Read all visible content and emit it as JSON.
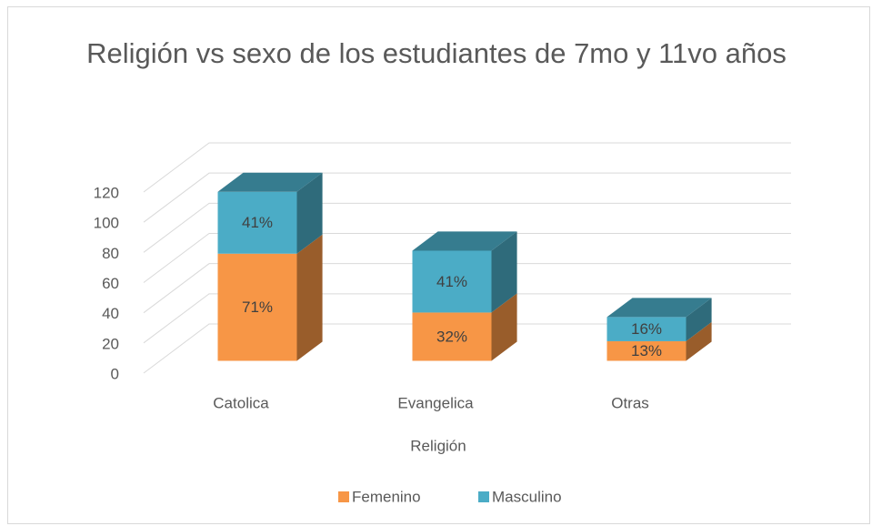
{
  "chart_data": {
    "type": "bar3d_stacked",
    "title": "Religión vs sexo de los estudiantes de 7mo y 11vo años",
    "x_label": "Religión",
    "categories": [
      "Catolica",
      "Evangelica",
      "Otras"
    ],
    "series": [
      {
        "name": "Femenino",
        "color": "#F79646",
        "values": [
          71,
          32,
          13
        ],
        "value_labels": [
          "71%",
          "32%",
          "13%"
        ]
      },
      {
        "name": "Masculino",
        "color": "#4BACC6",
        "values": [
          41,
          41,
          16
        ],
        "value_labels": [
          "41%",
          "41%",
          "16%"
        ]
      }
    ],
    "ylim": [
      0,
      120
    ],
    "yticks": [
      0,
      20,
      40,
      60,
      80,
      100,
      120
    ],
    "grid": true,
    "legend": "bottom"
  }
}
